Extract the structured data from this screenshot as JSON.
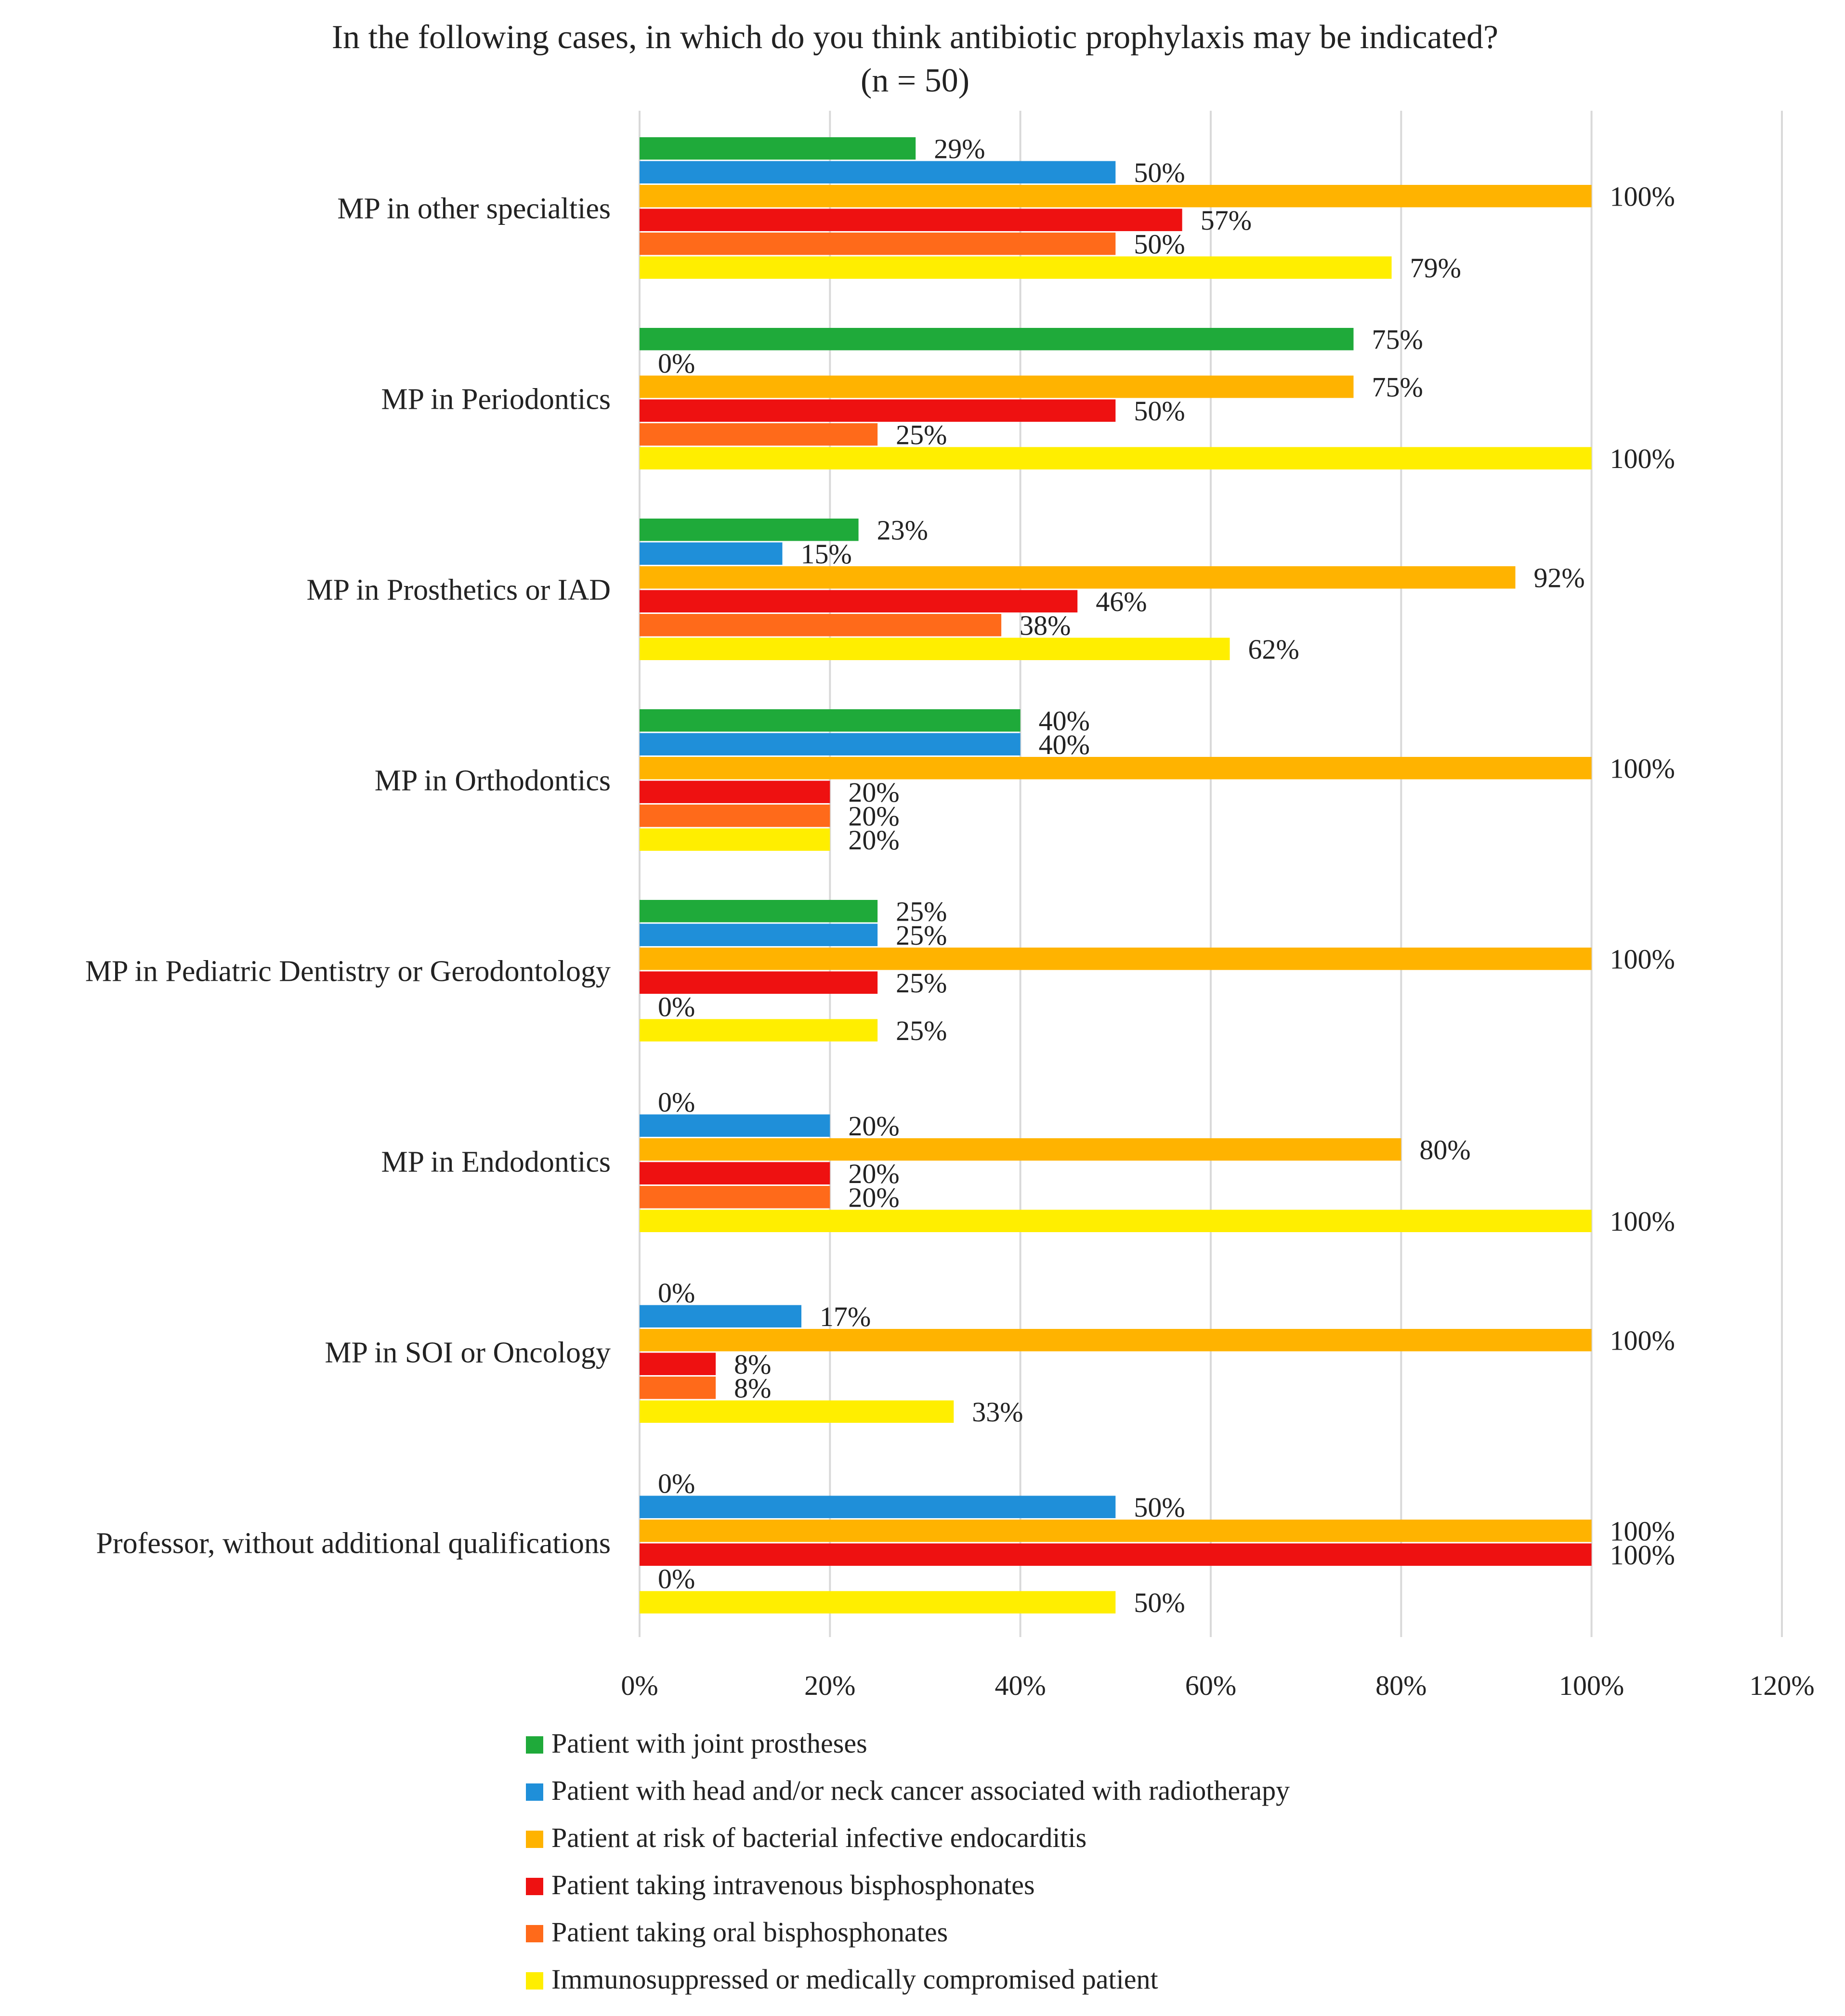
{
  "chart_data": {
    "type": "bar",
    "orientation": "horizontal",
    "title": "In the following cases, in which do you think antibiotic prophylaxis may be indicated?",
    "subtitle": "(n = 50)",
    "xlabel": "",
    "ylabel": "",
    "xlim": [
      0,
      120
    ],
    "x_ticks": [
      "0%",
      "20%",
      "40%",
      "60%",
      "80%",
      "100%",
      "120%"
    ],
    "x_tick_values": [
      0,
      20,
      40,
      60,
      80,
      100,
      120
    ],
    "grid": "vertical",
    "legend_position": "bottom",
    "value_suffix": "%",
    "categories": [
      "MP in other specialties",
      "MP in Periodontics",
      "MP in Prosthetics or IAD",
      "MP in Orthodontics",
      "MP in Pediatric Dentistry or Gerodontology",
      "MP in Endodontics",
      "MP in SOI or Oncology",
      "Professor, without additional qualifications"
    ],
    "series": [
      {
        "name": "Patient with joint prostheses",
        "color": "#1faa3a",
        "values": [
          29,
          75,
          23,
          40,
          25,
          0,
          0,
          0
        ]
      },
      {
        "name": "Patient with head and/or neck cancer associated with radiotherapy",
        "color": "#1f8fd9",
        "values": [
          50,
          0,
          15,
          40,
          25,
          20,
          17,
          50
        ]
      },
      {
        "name": "Patient at risk of bacterial infective endocarditis",
        "color": "#ffb300",
        "values": [
          100,
          75,
          92,
          100,
          100,
          80,
          100,
          100
        ]
      },
      {
        "name": "Patient taking intravenous bisphosphonates",
        "color": "#ee1111",
        "values": [
          57,
          50,
          46,
          20,
          25,
          20,
          8,
          100
        ]
      },
      {
        "name": "Patient taking oral bisphosphonates",
        "color": "#ff6a1a",
        "values": [
          50,
          25,
          38,
          20,
          0,
          20,
          8,
          0
        ]
      },
      {
        "name": "Immunosuppressed or medically compromised patient",
        "color": "#ffee00",
        "values": [
          79,
          100,
          62,
          20,
          25,
          100,
          33,
          50
        ]
      }
    ]
  }
}
